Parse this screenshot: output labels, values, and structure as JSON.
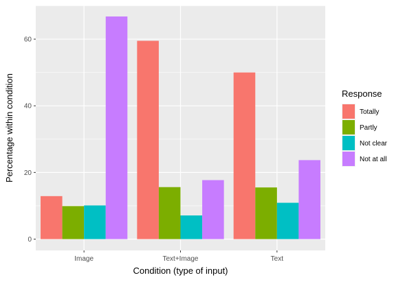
{
  "chart_data": {
    "type": "bar",
    "title": "",
    "xlabel": "Condition (type of input)",
    "ylabel": "Percentage within condition",
    "categories": [
      "Image",
      "Text+Image",
      "Text"
    ],
    "ylim": [
      -3.4,
      70.1
    ],
    "yticks": [
      0,
      20,
      40,
      60
    ],
    "grid": true,
    "legend_position": "right",
    "legend_title": "Response",
    "panel_background": "#ebebeb",
    "series": [
      {
        "name": "Totally",
        "color": "#f8766d",
        "values": [
          12.9,
          59.5,
          50.0
        ]
      },
      {
        "name": "Partly",
        "color": "#7cae00",
        "values": [
          9.9,
          15.6,
          15.5
        ]
      },
      {
        "name": "Not clear",
        "color": "#00bfc4",
        "values": [
          10.1,
          7.1,
          10.9
        ]
      },
      {
        "name": "Not at all",
        "color": "#c77cff",
        "values": [
          66.8,
          17.7,
          23.7
        ]
      }
    ]
  }
}
